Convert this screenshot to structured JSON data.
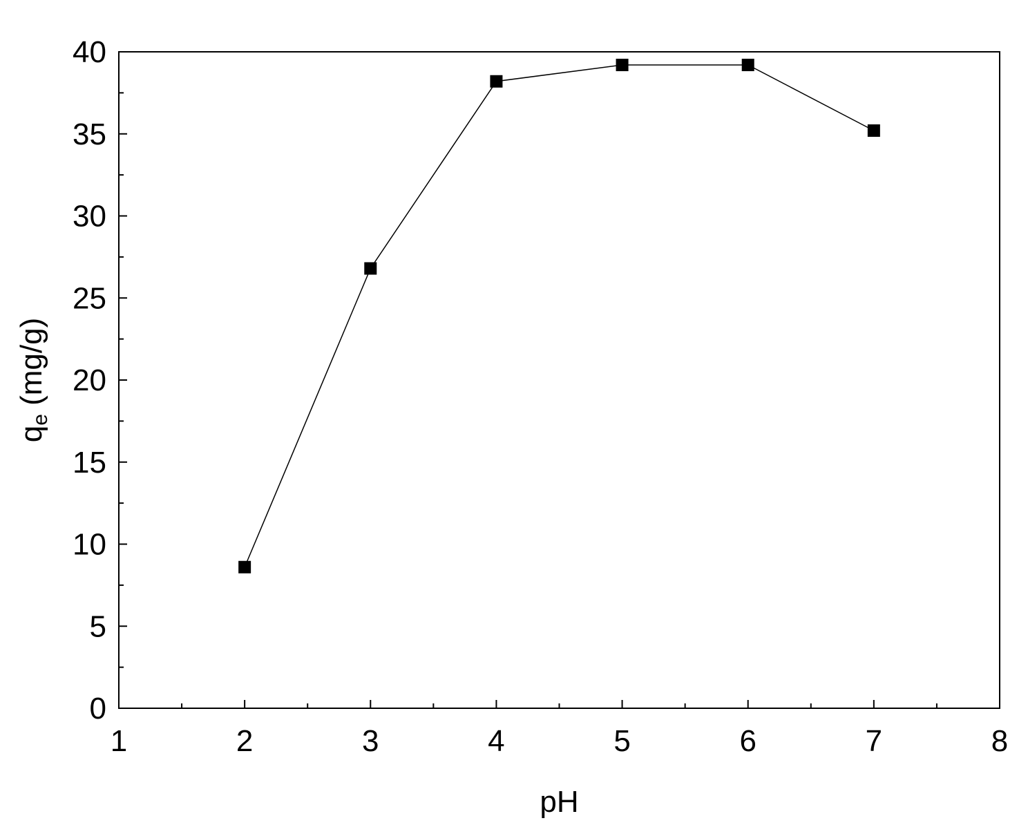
{
  "chart_data": {
    "type": "line",
    "title": "",
    "xlabel": "pH",
    "ylabel": {
      "main": "q",
      "subscript": "e",
      "unit": " (mg/g)"
    },
    "xlim": [
      1,
      8
    ],
    "ylim": [
      0,
      40
    ],
    "x_major_ticks": [
      1,
      2,
      3,
      4,
      5,
      6,
      7,
      8
    ],
    "x_minor_step": 0.5,
    "y_major_ticks": [
      0,
      5,
      10,
      15,
      20,
      25,
      30,
      35,
      40
    ],
    "y_minor_step": 2.5,
    "grid": false,
    "legend": "none",
    "marker": "filled-square",
    "colors": {
      "line": "#000000",
      "marker": "#000000",
      "axes": "#000000",
      "background": "#ffffff"
    },
    "series": [
      {
        "x": [
          2,
          3,
          4,
          5,
          6,
          7
        ],
        "y": [
          8.6,
          26.8,
          38.2,
          39.2,
          39.2,
          35.2
        ]
      }
    ]
  }
}
